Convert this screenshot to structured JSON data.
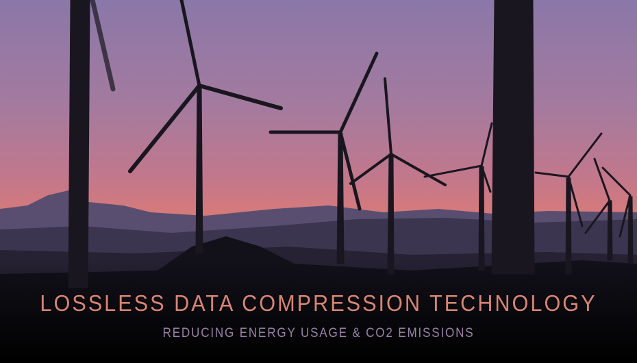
{
  "hero": {
    "title": "LOSSLESS DATA COMPRESSION TECHNOLOGY",
    "subtitle": "REDUCING ENERGY USAGE & CO2 EMISSIONS",
    "background": "wind-turbines-at-sunset",
    "title_color": "#d98574",
    "subtitle_color": "#9a80a8"
  }
}
